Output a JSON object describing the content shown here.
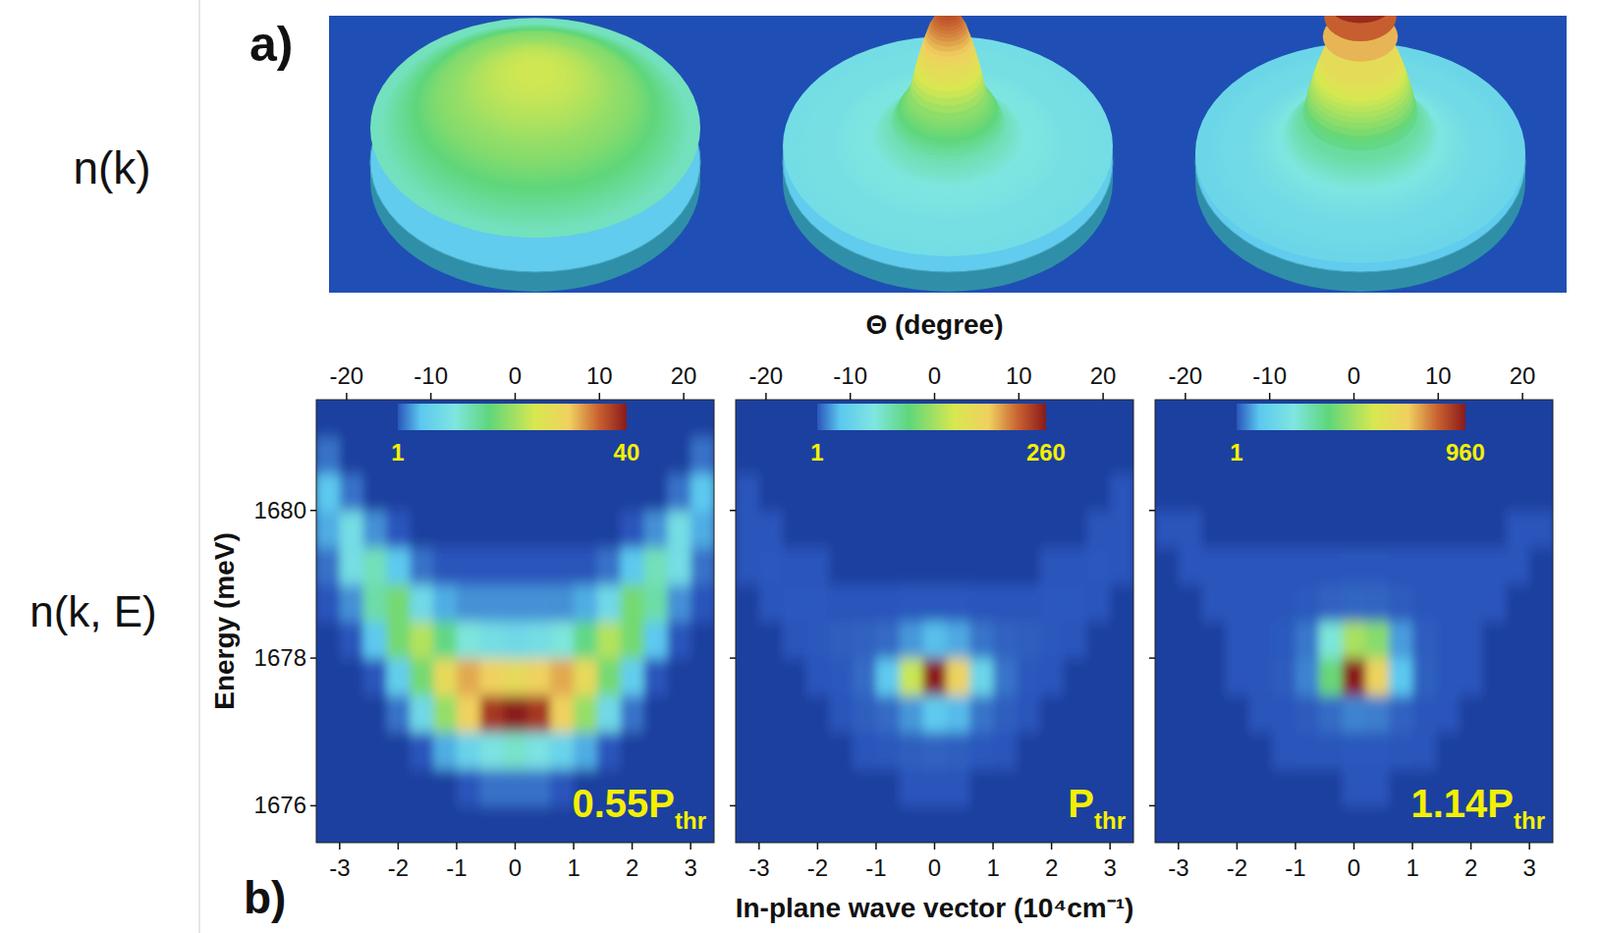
{
  "rows": [
    {
      "label": "n(k)",
      "letter": "a)"
    },
    {
      "label": "n(k, E)",
      "letter": "b)"
    }
  ],
  "xlabel": "In-plane wave vector (10⁴cm⁻¹)",
  "x2label": "Θ (degree)",
  "ylabel": "Energy (meV)",
  "chart_data": [
    {
      "type": "heatmap",
      "pump": {
        "text": "0.55P",
        "sub": "thr"
      },
      "x": [
        -3.2,
        -2.8,
        -2.4,
        -2.0,
        -1.6,
        -1.2,
        -0.8,
        -0.4,
        0,
        0.4,
        0.8,
        1.2,
        1.6,
        2.0,
        2.4,
        2.8,
        3.2
      ],
      "y": [
        1675.75,
        1676.25,
        1676.75,
        1677.25,
        1677.75,
        1678.25,
        1678.75,
        1679.25,
        1679.75,
        1680.25,
        1680.75,
        1681.25
      ],
      "cells": [
        [
          0,
          0,
          0,
          0,
          0,
          0,
          0,
          0,
          0,
          0,
          0,
          0,
          0,
          0,
          0,
          0,
          0
        ],
        [
          0,
          0,
          0,
          0,
          0,
          0,
          1,
          2,
          2,
          2,
          1,
          0,
          0,
          0,
          0,
          0,
          0
        ],
        [
          0,
          0,
          0,
          0,
          1,
          4,
          7,
          10,
          12,
          10,
          7,
          4,
          1,
          0,
          0,
          0,
          0
        ],
        [
          0,
          0,
          0,
          2,
          8,
          20,
          30,
          38,
          40,
          38,
          30,
          20,
          8,
          2,
          0,
          0,
          0
        ],
        [
          0,
          0,
          1,
          6,
          18,
          28,
          32,
          30,
          28,
          30,
          32,
          28,
          18,
          6,
          1,
          0,
          0
        ],
        [
          0,
          1,
          5,
          18,
          22,
          16,
          11,
          9,
          8,
          9,
          11,
          16,
          22,
          18,
          5,
          1,
          0
        ],
        [
          1,
          3,
          14,
          18,
          8,
          4,
          3,
          3,
          3,
          3,
          3,
          4,
          8,
          18,
          14,
          3,
          1
        ],
        [
          2,
          9,
          13,
          5,
          2,
          1,
          1,
          1,
          1,
          1,
          1,
          1,
          2,
          5,
          13,
          9,
          2
        ],
        [
          4,
          9,
          3,
          1,
          0,
          0,
          0,
          0,
          0,
          0,
          0,
          0,
          0,
          1,
          3,
          9,
          4
        ],
        [
          5,
          2,
          0,
          0,
          0,
          0,
          0,
          0,
          0,
          0,
          0,
          0,
          0,
          0,
          0,
          2,
          5
        ],
        [
          2,
          0,
          0,
          0,
          0,
          0,
          0,
          0,
          0,
          0,
          0,
          0,
          0,
          0,
          0,
          0,
          2
        ],
        [
          0,
          0,
          0,
          0,
          0,
          0,
          0,
          0,
          0,
          0,
          0,
          0,
          0,
          0,
          0,
          0,
          0
        ]
      ],
      "colorbar": {
        "range": [
          1,
          40
        ],
        "ticks": [
          1,
          40
        ]
      },
      "xlim": [
        -3.4,
        3.4
      ],
      "xticks": [
        -3,
        -2,
        -1,
        0,
        1,
        2,
        3
      ],
      "x2lim": [
        -23.6,
        23.6
      ],
      "x2ticks": [
        -20,
        -10,
        0,
        10,
        20
      ],
      "ylim": [
        1675.5,
        1681.5
      ],
      "yticks": [
        1676,
        1678,
        1680
      ]
    },
    {
      "type": "heatmap",
      "pump": {
        "text": "P",
        "sub": "thr"
      },
      "tick_labels": "x",
      "x": [
        -3.2,
        -2.8,
        -2.4,
        -2.0,
        -1.6,
        -1.2,
        -0.8,
        -0.4,
        0,
        0.4,
        0.8,
        1.2,
        1.6,
        2.0,
        2.4,
        2.8,
        3.2
      ],
      "y": [
        1675.75,
        1676.25,
        1676.75,
        1677.25,
        1677.75,
        1678.25,
        1678.75,
        1679.25,
        1679.75,
        1680.25,
        1680.75,
        1681.25
      ],
      "cells": [
        [
          0,
          0,
          0,
          0,
          0,
          0,
          0,
          0,
          0,
          0,
          0,
          0,
          0,
          0,
          0,
          0,
          0
        ],
        [
          0,
          0,
          0,
          0,
          0,
          0,
          0,
          1,
          1,
          1,
          0,
          0,
          0,
          0,
          0,
          0,
          0
        ],
        [
          0,
          0,
          0,
          0,
          0,
          1,
          2,
          3,
          4,
          3,
          2,
          1,
          0,
          0,
          0,
          0,
          0
        ],
        [
          0,
          0,
          0,
          0,
          1,
          3,
          6,
          16,
          30,
          24,
          8,
          3,
          1,
          0,
          0,
          0,
          0
        ],
        [
          0,
          0,
          0,
          1,
          2,
          6,
          30,
          150,
          260,
          190,
          45,
          8,
          2,
          1,
          0,
          0,
          0
        ],
        [
          0,
          0,
          1,
          2,
          3,
          4,
          6,
          16,
          25,
          20,
          8,
          4,
          3,
          2,
          1,
          0,
          0
        ],
        [
          0,
          1,
          2,
          2,
          1,
          1,
          1,
          2,
          2,
          2,
          1,
          1,
          1,
          2,
          2,
          1,
          0
        ],
        [
          1,
          2,
          1,
          1,
          0,
          0,
          0,
          0,
          0,
          0,
          0,
          0,
          0,
          1,
          1,
          2,
          1
        ],
        [
          1,
          1,
          0,
          0,
          0,
          0,
          0,
          0,
          0,
          0,
          0,
          0,
          0,
          0,
          0,
          1,
          1
        ],
        [
          1,
          0,
          0,
          0,
          0,
          0,
          0,
          0,
          0,
          0,
          0,
          0,
          0,
          0,
          0,
          0,
          1
        ],
        [
          0,
          0,
          0,
          0,
          0,
          0,
          0,
          0,
          0,
          0,
          0,
          0,
          0,
          0,
          0,
          0,
          0
        ],
        [
          0,
          0,
          0,
          0,
          0,
          0,
          0,
          0,
          0,
          0,
          0,
          0,
          0,
          0,
          0,
          0,
          0
        ]
      ],
      "colorbar": {
        "range": [
          1,
          260
        ],
        "ticks": [
          1,
          260
        ]
      },
      "xlim": [
        -3.4,
        3.4
      ],
      "xticks": [
        -3,
        -2,
        -1,
        0,
        1,
        2,
        3
      ],
      "x2lim": [
        -23.6,
        23.6
      ],
      "x2ticks": [
        -20,
        -10,
        0,
        10,
        20
      ],
      "ylim": [
        1675.5,
        1681.5
      ],
      "yticks": [
        1676,
        1678,
        1680
      ]
    },
    {
      "type": "heatmap",
      "pump": {
        "text": "1.14P",
        "sub": "thr"
      },
      "tick_labels": "x",
      "x": [
        -3.2,
        -2.8,
        -2.4,
        -2.0,
        -1.6,
        -1.2,
        -0.8,
        -0.4,
        0,
        0.4,
        0.8,
        1.2,
        1.6,
        2.0,
        2.4,
        2.8,
        3.2
      ],
      "y": [
        1675.75,
        1676.25,
        1676.75,
        1677.25,
        1677.75,
        1678.25,
        1678.75,
        1679.25,
        1679.75,
        1680.25,
        1680.75,
        1681.25
      ],
      "cells": [
        [
          0,
          0,
          0,
          0,
          0,
          0,
          0,
          0,
          0,
          0,
          0,
          0,
          0,
          0,
          0,
          0,
          0
        ],
        [
          0,
          0,
          0,
          0,
          0,
          0,
          0,
          0,
          1,
          1,
          0,
          0,
          0,
          0,
          0,
          0,
          0
        ],
        [
          0,
          0,
          0,
          0,
          0,
          1,
          2,
          3,
          4,
          4,
          3,
          1,
          0,
          0,
          0,
          0,
          0
        ],
        [
          0,
          0,
          0,
          0,
          1,
          2,
          6,
          20,
          40,
          35,
          12,
          3,
          1,
          0,
          0,
          0,
          0
        ],
        [
          0,
          0,
          0,
          1,
          2,
          6,
          40,
          400,
          960,
          700,
          100,
          10,
          2,
          1,
          0,
          0,
          0
        ],
        [
          0,
          0,
          0,
          1,
          2,
          5,
          30,
          250,
          500,
          450,
          60,
          8,
          2,
          1,
          0,
          0,
          0
        ],
        [
          0,
          0,
          1,
          1,
          2,
          3,
          5,
          12,
          15,
          14,
          6,
          3,
          2,
          1,
          1,
          0,
          0
        ],
        [
          0,
          1,
          1,
          1,
          1,
          1,
          1,
          1,
          2,
          2,
          1,
          1,
          1,
          1,
          1,
          1,
          0
        ],
        [
          1,
          1,
          0,
          0,
          0,
          0,
          0,
          0,
          0,
          0,
          0,
          0,
          0,
          0,
          0,
          1,
          1
        ],
        [
          0,
          0,
          0,
          0,
          0,
          0,
          0,
          0,
          0,
          0,
          0,
          0,
          0,
          0,
          0,
          0,
          0
        ],
        [
          0,
          0,
          0,
          0,
          0,
          0,
          0,
          0,
          0,
          0,
          0,
          0,
          0,
          0,
          0,
          0,
          0
        ],
        [
          0,
          0,
          0,
          0,
          0,
          0,
          0,
          0,
          0,
          0,
          0,
          0,
          0,
          0,
          0,
          0,
          0
        ]
      ],
      "colorbar": {
        "range": [
          1,
          960
        ],
        "ticks": [
          1,
          960
        ]
      },
      "xlim": [
        -3.4,
        3.4
      ],
      "xticks": [
        -3,
        -2,
        -1,
        0,
        1,
        2,
        3
      ],
      "x2lim": [
        -23.6,
        23.6
      ],
      "x2ticks": [
        -20,
        -10,
        0,
        10,
        20
      ],
      "ylim": [
        1675.5,
        1681.5
      ],
      "yticks": [
        1676,
        1678,
        1680
      ]
    }
  ]
}
